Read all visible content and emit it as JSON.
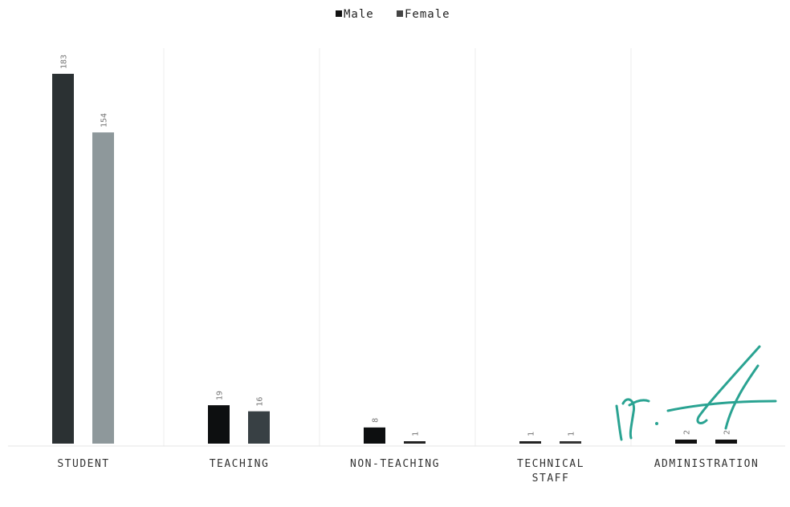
{
  "chart_data": {
    "type": "bar",
    "categories": [
      [
        "STUDENT"
      ],
      [
        "TEACHING"
      ],
      [
        "NON-TEACHING"
      ],
      [
        "TECHNICAL",
        "STAFF"
      ],
      [
        "ADMINISTRATION"
      ]
    ],
    "series": [
      {
        "name": "Male",
        "color": "#2b3133",
        "values": [
          183,
          19,
          8,
          1,
          2
        ],
        "labels": [
          "183",
          "19",
          "8",
          "1",
          "2"
        ]
      },
      {
        "name": "Female",
        "color": "#8e989b",
        "values": [
          154,
          16,
          1,
          1,
          2
        ],
        "labels": [
          "154",
          "16",
          "1",
          "1",
          "2"
        ]
      }
    ],
    "point_colors": [
      [
        "#2b3133",
        "#8e989b"
      ],
      [
        "#0d0f10",
        "#384044"
      ],
      [
        "#0d0f10",
        "#222222"
      ],
      [
        "#222222",
        "#333333"
      ],
      [
        "#111111",
        "#111111"
      ]
    ],
    "ylim": [
      0,
      190
    ],
    "grid": "vertical separators",
    "legend": "top-center",
    "annotation": "handwritten signature (teal) over bottom-right"
  }
}
